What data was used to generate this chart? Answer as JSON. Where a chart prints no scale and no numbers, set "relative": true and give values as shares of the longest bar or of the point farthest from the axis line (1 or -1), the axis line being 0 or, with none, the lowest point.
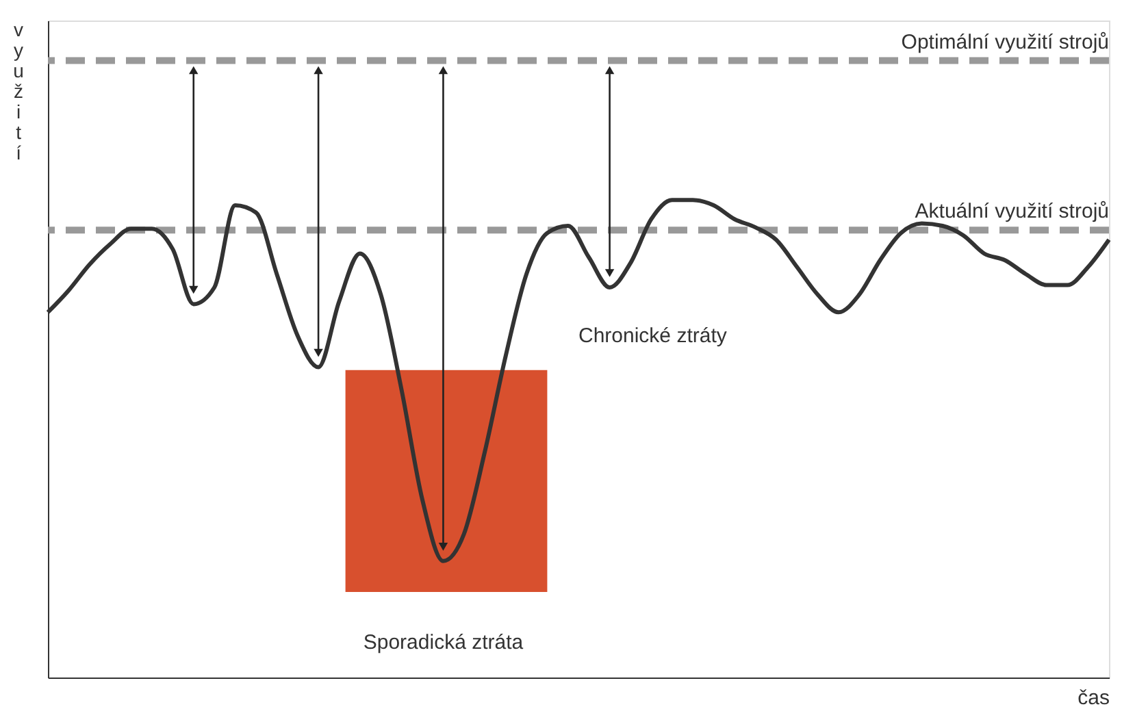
{
  "chart_data": {
    "type": "line",
    "relative": true,
    "xlabel": "čas",
    "ylabel": "využití",
    "categories": [
      null,
      null,
      null,
      null,
      null,
      null,
      null,
      null,
      null,
      null,
      null,
      null,
      null,
      null,
      null,
      null,
      null,
      null,
      null,
      null,
      null,
      null,
      null,
      null,
      null,
      null,
      null,
      null,
      null,
      null,
      null,
      null,
      null,
      null,
      null,
      null,
      null,
      null,
      null,
      null,
      null,
      null,
      null,
      null,
      null,
      null,
      null,
      null,
      null,
      null,
      null,
      null
    ],
    "series": [
      {
        "color": "#333333",
        "values": [
          0.765,
          0.811,
          0.865,
          0.908,
          0.94,
          0.94,
          0.897,
          0.782,
          0.817,
          0.989,
          0.974,
          0.845,
          0.716,
          0.65,
          0.788,
          0.888,
          0.802,
          0.602,
          0.372,
          0.244,
          0.301,
          0.473,
          0.673,
          0.845,
          0.931,
          0.946,
          0.88,
          0.817,
          0.868,
          0.96,
          1,
          1,
          0.989,
          0.96,
          0.943,
          0.917,
          0.86,
          0.802,
          0.765,
          0.802,
          0.874,
          0.931,
          0.951,
          0.946,
          0.926,
          0.888,
          0.874,
          0.845,
          0.822,
          0.822,
          0.86,
          0.917
        ]
      }
    ],
    "ref_lines": [
      {
        "axis": "y",
        "value": 1.292,
        "label": "Optimální využití strojů",
        "color": "#999999",
        "line_style": "dashed"
      },
      {
        "axis": "y",
        "value": 0.937,
        "label": "Aktuální využití strojů",
        "color": "#999999",
        "line_style": "dashed"
      }
    ],
    "annotations": [
      "Chronické ztráty",
      "Sporadická ztráta"
    ],
    "line_style": "solid"
  }
}
